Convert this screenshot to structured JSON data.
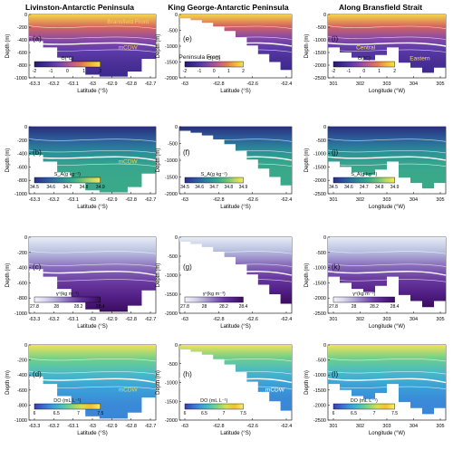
{
  "figure": {
    "column_titles": [
      "Livinston-Antarctic Peninsula",
      "King George-Antarctic Peninsula",
      "Along Bransfield Strait"
    ]
  },
  "colors": {
    "theta": [
      "#2b1a6b",
      "#3b2a8f",
      "#5b3aa8",
      "#8a4aa6",
      "#c05a8a",
      "#e07a50",
      "#f2b33b",
      "#f7e24a"
    ],
    "salinity": [
      "#2c2f86",
      "#2d4f9a",
      "#2c6fa0",
      "#2a8f98",
      "#3aa98a",
      "#6bc07a",
      "#b8d86a",
      "#f5ea55"
    ],
    "density": [
      "#f6f2fa",
      "#d9d6ee",
      "#b2a7d6",
      "#8a6fbd",
      "#6a3aa0",
      "#521f86",
      "#3b0d5e"
    ],
    "oxygen": [
      "#3b3db0",
      "#3a6fd2",
      "#3aa0d8",
      "#4ac4b8",
      "#86d67a",
      "#d8e04c",
      "#f5c02e",
      "#f1f26a"
    ]
  },
  "chart_data": [
    {
      "id": "a",
      "type": "heatmap",
      "variable": "theta",
      "row": 0,
      "col": 0,
      "label": "(a)",
      "xlabel": "Latitude (°S)",
      "ylabel": "Depth (m)",
      "x_ticks": [
        "-63.3",
        "-63.2",
        "-63.1",
        "-63",
        "-62.9",
        "-62.8",
        "-62.7"
      ],
      "y_ticks": [
        "0",
        "-200",
        "-400",
        "-600",
        "-800",
        "-1000"
      ],
      "ylim": [
        -1000,
        0
      ],
      "colorbar": {
        "label": "Θ(°C)",
        "ticks": [
          "-2",
          "-1",
          "0",
          "1",
          "2"
        ],
        "range": [
          -2,
          2
        ]
      },
      "annotations": [
        "Bransfield Front",
        "mCDW"
      ],
      "bottom_depth": [
        -420,
        -520,
        -680,
        -820,
        -950,
        -980,
        -980,
        -900,
        -700
      ]
    },
    {
      "id": "e",
      "type": "heatmap",
      "variable": "theta",
      "row": 0,
      "col": 1,
      "label": "(e)",
      "xlabel": "Latitude (°S)",
      "ylabel": "Depth (m)",
      "x_ticks": [
        "-63",
        "-62.8",
        "-62.6",
        "-62.4"
      ],
      "y_ticks": [
        "0",
        "-500",
        "-1000",
        "-1500",
        "-2000"
      ],
      "ylim": [
        -2000,
        0
      ],
      "colorbar": {
        "label": "Θ(°C)",
        "ticks": [
          "-2",
          "-1",
          "0",
          "1",
          "2"
        ],
        "range": [
          -2,
          2
        ]
      },
      "annotations": [
        "Peninsula Front"
      ],
      "bottom_depth": [
        -120,
        -180,
        -260,
        -380,
        -520,
        -720,
        -980,
        -1250,
        -1500,
        -1750
      ]
    },
    {
      "id": "i",
      "type": "heatmap",
      "variable": "theta",
      "row": 0,
      "col": 2,
      "label": "(i)",
      "xlabel": "Longitude (°W)",
      "ylabel": "Depth (m)",
      "x_ticks": [
        "301",
        "302",
        "303",
        "304",
        "305"
      ],
      "y_ticks": [
        "0",
        "-500",
        "-1000",
        "-1500",
        "-2000",
        "-2500"
      ],
      "ylim": [
        -2500,
        0
      ],
      "colorbar": {
        "label": "Θ(°C)",
        "ticks": [
          "-2",
          "-1",
          "0",
          "1",
          "2"
        ],
        "range": [
          -2,
          2
        ]
      },
      "annotations": [
        "Central",
        "Eastern"
      ],
      "bottom_depth": [
        -1300,
        -1500,
        -1700,
        -1800,
        -1600,
        -1300,
        -1900,
        -2100,
        -2300,
        -2100
      ]
    },
    {
      "id": "b",
      "type": "heatmap",
      "variable": "salinity",
      "row": 1,
      "col": 0,
      "label": "(b)",
      "xlabel": "Latitude (°S)",
      "ylabel": "Depth (m)",
      "x_ticks": [
        "-63.3",
        "-63.2",
        "-63.1",
        "-63",
        "-62.9",
        "-62.8",
        "-62.7"
      ],
      "y_ticks": [
        "0",
        "-200",
        "-400",
        "-600",
        "-800",
        "-1000"
      ],
      "ylim": [
        -1000,
        0
      ],
      "colorbar": {
        "label": "S_A(g kg⁻¹)",
        "ticks": [
          "34.5",
          "34.6",
          "34.7",
          "34.8",
          "34.9"
        ],
        "range": [
          34.5,
          34.9
        ]
      },
      "annotations": [
        "mCDW"
      ],
      "bottom_depth": [
        -420,
        -520,
        -680,
        -820,
        -950,
        -980,
        -980,
        -900,
        -700
      ]
    },
    {
      "id": "f",
      "type": "heatmap",
      "variable": "salinity",
      "row": 1,
      "col": 1,
      "label": "(f)",
      "xlabel": "Latitude (°S)",
      "ylabel": "Depth (m)",
      "x_ticks": [
        "-63",
        "-62.8",
        "-62.6",
        "-62.4"
      ],
      "y_ticks": [
        "0",
        "-500",
        "-1000",
        "-1500",
        "-2000"
      ],
      "ylim": [
        -2000,
        0
      ],
      "colorbar": {
        "label": "S_A(g kg⁻¹)",
        "ticks": [
          "34.5",
          "34.6",
          "34.7",
          "34.8",
          "34.9"
        ],
        "range": [
          34.5,
          34.9
        ]
      },
      "annotations": [],
      "bottom_depth": [
        -120,
        -180,
        -260,
        -380,
        -520,
        -720,
        -980,
        -1250,
        -1500,
        -1750
      ]
    },
    {
      "id": "j",
      "type": "heatmap",
      "variable": "salinity",
      "row": 1,
      "col": 2,
      "label": "(j)",
      "xlabel": "Longitude (°W)",
      "ylabel": "Depth (m)",
      "x_ticks": [
        "301",
        "302",
        "303",
        "304",
        "305"
      ],
      "y_ticks": [
        "0",
        "-500",
        "-1000",
        "-1500",
        "-2000",
        "-2500"
      ],
      "ylim": [
        -2500,
        0
      ],
      "colorbar": {
        "label": "S_A(g kg⁻¹)",
        "ticks": [
          "34.5",
          "34.6",
          "34.7",
          "34.8",
          "34.9"
        ],
        "range": [
          34.5,
          34.9
        ]
      },
      "annotations": [],
      "bottom_depth": [
        -1300,
        -1500,
        -1700,
        -1800,
        -1600,
        -1300,
        -1900,
        -2100,
        -2300,
        -2100
      ]
    },
    {
      "id": "c",
      "type": "heatmap",
      "variable": "density",
      "row": 2,
      "col": 0,
      "label": "(c)",
      "xlabel": "Latitude (°S)",
      "ylabel": "Depth (m)",
      "x_ticks": [
        "-63.3",
        "-63.2",
        "-63.1",
        "-63",
        "-62.9",
        "-62.8",
        "-62.7"
      ],
      "y_ticks": [
        "0",
        "-200",
        "-400",
        "-600",
        "-800",
        "-1000"
      ],
      "ylim": [
        -1000,
        0
      ],
      "colorbar": {
        "label": "γⁿ(kg m⁻³)",
        "ticks": [
          "27.8",
          "28",
          "28.2",
          "28.4"
        ],
        "range": [
          27.7,
          28.4
        ]
      },
      "annotations": [],
      "bottom_depth": [
        -420,
        -520,
        -680,
        -820,
        -950,
        -980,
        -980,
        -900,
        -700
      ]
    },
    {
      "id": "g",
      "type": "heatmap",
      "variable": "density",
      "row": 2,
      "col": 1,
      "label": "(g)",
      "xlabel": "Latitude (°S)",
      "ylabel": "Depth (m)",
      "x_ticks": [
        "-63",
        "-62.8",
        "-62.6",
        "-62.4"
      ],
      "y_ticks": [
        "0",
        "-500",
        "-1000",
        "-1500",
        "-2000"
      ],
      "ylim": [
        -2000,
        0
      ],
      "colorbar": {
        "label": "γⁿ(kg m⁻³)",
        "ticks": [
          "27.8",
          "28",
          "28.2",
          "28.4"
        ],
        "range": [
          27.7,
          28.4
        ]
      },
      "annotations": [],
      "bottom_depth": [
        -120,
        -180,
        -260,
        -380,
        -520,
        -720,
        -980,
        -1250,
        -1500,
        -1750
      ]
    },
    {
      "id": "k",
      "type": "heatmap",
      "variable": "density",
      "row": 2,
      "col": 2,
      "label": "(k)",
      "xlabel": "Longitude (°W)",
      "ylabel": "Depth (m)",
      "x_ticks": [
        "301",
        "302",
        "303",
        "304",
        "305"
      ],
      "y_ticks": [
        "0",
        "-500",
        "-1000",
        "-1500",
        "-2000",
        "-2500"
      ],
      "ylim": [
        -2500,
        0
      ],
      "colorbar": {
        "label": "γⁿ(kg m⁻³)",
        "ticks": [
          "27.8",
          "28",
          "28.2",
          "28.4"
        ],
        "range": [
          27.7,
          28.4
        ]
      },
      "annotations": [],
      "bottom_depth": [
        -1300,
        -1500,
        -1700,
        -1800,
        -1600,
        -1300,
        -1900,
        -2100,
        -2300,
        -2100
      ]
    },
    {
      "id": "d",
      "type": "heatmap",
      "variable": "oxygen",
      "row": 3,
      "col": 0,
      "label": "(d)",
      "xlabel": "Latitude (°S)",
      "ylabel": "Depth (m)",
      "x_ticks": [
        "-63.3",
        "-63.2",
        "-63.1",
        "-63",
        "-62.9",
        "-62.8",
        "-62.7"
      ],
      "y_ticks": [
        "0",
        "-200",
        "-400",
        "-600",
        "-800",
        "-1000"
      ],
      "ylim": [
        -1000,
        0
      ],
      "colorbar": {
        "label": "DO (mL L⁻¹)",
        "ticks": [
          "6",
          "6.5",
          "7",
          "7.5"
        ],
        "range": [
          5.8,
          7.8
        ]
      },
      "annotations": [
        "mCDW"
      ],
      "bottom_depth": [
        -420,
        -520,
        -680,
        -820,
        -950,
        -980,
        -980,
        -900,
        -700
      ]
    },
    {
      "id": "h",
      "type": "heatmap",
      "variable": "oxygen",
      "row": 3,
      "col": 1,
      "label": "(h)",
      "xlabel": "Latitude (°S)",
      "ylabel": "Depth (m)",
      "x_ticks": [
        "-63",
        "-62.8",
        "-62.6",
        "-62.4"
      ],
      "y_ticks": [
        "0",
        "-500",
        "-1000",
        "-1500",
        "-2000"
      ],
      "ylim": [
        -2000,
        0
      ],
      "colorbar": {
        "label": "DO (mL L⁻¹)",
        "ticks": [
          "6",
          "6.5",
          "7",
          "7.5"
        ],
        "range": [
          5.8,
          7.8
        ]
      },
      "annotations": [
        "mCDW"
      ],
      "bottom_depth": [
        -120,
        -180,
        -260,
        -380,
        -520,
        -720,
        -980,
        -1250,
        -1500,
        -1750
      ]
    },
    {
      "id": "l",
      "type": "heatmap",
      "variable": "oxygen",
      "row": 3,
      "col": 2,
      "label": "(l)",
      "xlabel": "Longitude (°W)",
      "ylabel": "Depth (m)",
      "x_ticks": [
        "301",
        "302",
        "303",
        "304",
        "305"
      ],
      "y_ticks": [
        "0",
        "-500",
        "-1000",
        "-1500",
        "-2000",
        "-2500"
      ],
      "ylim": [
        -2500,
        0
      ],
      "colorbar": {
        "label": "DO (mL L⁻¹)",
        "ticks": [
          "6",
          "6.5",
          "7",
          "7.5"
        ],
        "range": [
          5.8,
          7.8
        ]
      },
      "annotations": [],
      "bottom_depth": [
        -1300,
        -1500,
        -1700,
        -1800,
        -1600,
        -1300,
        -1900,
        -2100,
        -2300,
        -2100
      ]
    }
  ]
}
